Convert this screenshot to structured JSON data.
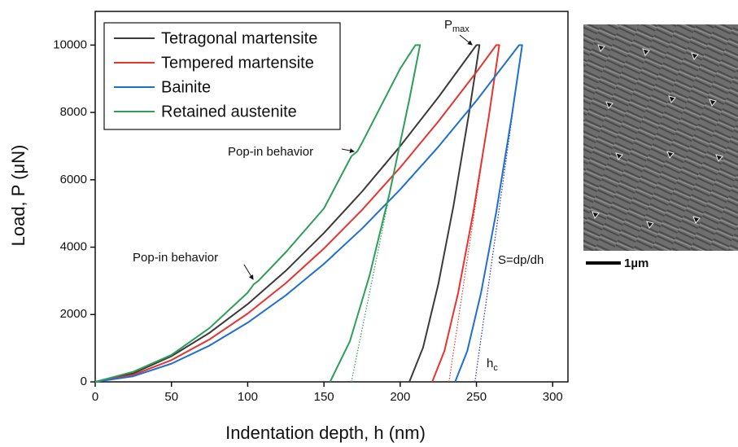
{
  "chart_data": {
    "type": "line",
    "xlabel": "Indentation depth, h (nm)",
    "ylabel": "Load, P (μN)",
    "xlim": [
      0,
      310
    ],
    "ylim": [
      0,
      11000
    ],
    "xticks": [
      0,
      50,
      100,
      150,
      200,
      250,
      300
    ],
    "yticks": [
      0,
      2000,
      4000,
      6000,
      8000,
      10000
    ],
    "legend": "upper left",
    "series": [
      {
        "name": "Tetragonal martensite",
        "color": "#3a3a3a",
        "x": [
          0,
          25,
          50,
          75,
          100,
          125,
          150,
          175,
          200,
          225,
          250,
          252,
          245,
          235,
          225,
          215,
          206
        ],
        "values": [
          0,
          251,
          761,
          1457,
          2310,
          3299,
          4420,
          5651,
          7000,
          8449,
          10000,
          10000,
          7940,
          5240,
          2900,
          1020,
          0
        ]
      },
      {
        "name": "Tempered martensite",
        "color": "#e8332e",
        "x": [
          0,
          25,
          50,
          75,
          100,
          125,
          150,
          175,
          200,
          225,
          250,
          263,
          265,
          258,
          248,
          238,
          229,
          221
        ],
        "values": [
          0,
          206,
          646,
          1262,
          2028,
          2931,
          3960,
          5106,
          6365,
          7730,
          9198,
          10000,
          10000,
          7846,
          5047,
          2642,
          919,
          0
        ]
      },
      {
        "name": "Bainite",
        "color": "#1f6fd0",
        "x": [
          0,
          25,
          50,
          75,
          100,
          125,
          150,
          175,
          200,
          225,
          250,
          278,
          280,
          273,
          263,
          253,
          244,
          236
        ],
        "values": [
          0,
          167,
          541,
          1078,
          1758,
          2570,
          3503,
          4553,
          5713,
          6980,
          8350,
          10000,
          10000,
          7846,
          5047,
          2642,
          919,
          0
        ]
      },
      {
        "name": "Retained austenite",
        "color": "#2e9e58",
        "x": [
          0,
          25,
          50,
          75,
          100,
          104,
          107,
          125,
          150,
          168,
          172,
          175,
          200,
          210,
          213,
          206,
          193,
          180,
          167,
          154
        ],
        "values": [
          0,
          300,
          800,
          1600,
          2650,
          2900,
          3000,
          3850,
          5150,
          6700,
          6850,
          7100,
          9300,
          10000,
          10000,
          8380,
          5601,
          3175,
          1203,
          0
        ]
      }
    ],
    "tangents": [
      {
        "color": "#2e9e58",
        "x": [
          168,
          213
        ],
        "values": [
          0,
          10000
        ]
      },
      {
        "color": "#e8332e",
        "x": [
          232,
          265
        ],
        "values": [
          0,
          10000
        ]
      },
      {
        "color": "#1f2fd0",
        "x": [
          249,
          280
        ],
        "values": [
          0,
          10000
        ]
      }
    ],
    "annotations": [
      {
        "text": "Pop-in behavior"
      },
      {
        "text": "Pop-in behavior"
      },
      {
        "text": "P",
        "sub": "max"
      },
      {
        "text": "S=dp/dh"
      },
      {
        "text": "h",
        "sub": "c"
      }
    ],
    "scale_bar": "1µm"
  }
}
